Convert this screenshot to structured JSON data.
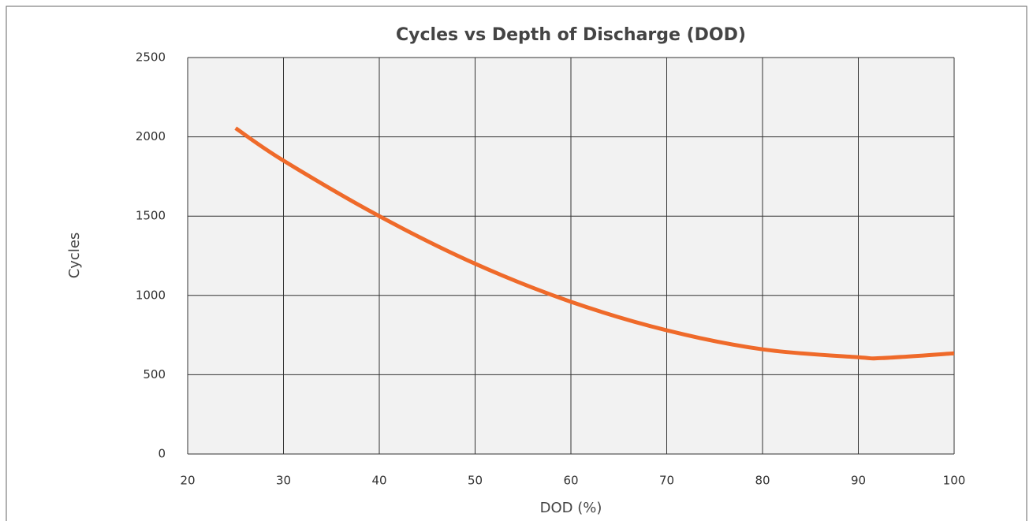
{
  "chart_data": {
    "type": "line",
    "title": "Cycles vs Depth of Discharge (DOD)",
    "x_label": "DOD (%)",
    "y_label": "Cycles",
    "x": [
      25,
      30,
      40,
      50,
      60,
      70,
      80,
      90,
      92.5,
      100
    ],
    "series": [
      {
        "name": "Cycles",
        "color": "#ef6a2a",
        "values": [
          2055,
          1850,
          1500,
          1200,
          960,
          780,
          660,
          610,
          605,
          635
        ]
      }
    ],
    "xlim": [
      20,
      100
    ],
    "xticks": [
      20,
      30,
      40,
      50,
      60,
      70,
      80,
      90,
      100
    ],
    "ylim": [
      0,
      2500
    ],
    "yticks": [
      0,
      500,
      1000,
      1500,
      2000,
      2500
    ],
    "grid": true
  }
}
